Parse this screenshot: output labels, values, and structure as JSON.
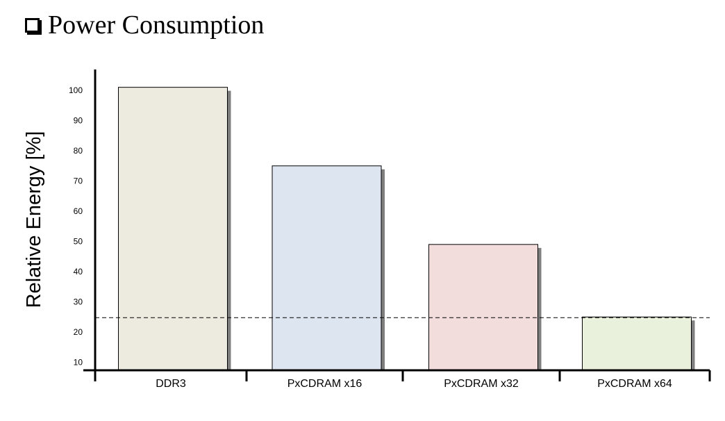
{
  "header": {
    "title": "Power Consumption"
  },
  "chart_data": {
    "type": "bar",
    "title": "Power Consumption",
    "xlabel": "",
    "ylabel": "Relative Energy [%]",
    "categories": [
      "DDR3",
      "PxCDRAM x16",
      "PxCDRAM x32",
      "PxCDRAM x64"
    ],
    "values": [
      101,
      75,
      49,
      25
    ],
    "yticks": [
      10,
      20,
      30,
      40,
      50,
      60,
      70,
      80,
      90,
      100
    ],
    "ylim": [
      5,
      107
    ],
    "reference_line": {
      "value": 25,
      "style": "dashed"
    },
    "colors": [
      "#edeae0",
      "#dce5f0",
      "#f2dcdc",
      "#e9f0dc"
    ],
    "shadow_color": "#7f7f7f",
    "grid": false,
    "legend": "none"
  }
}
